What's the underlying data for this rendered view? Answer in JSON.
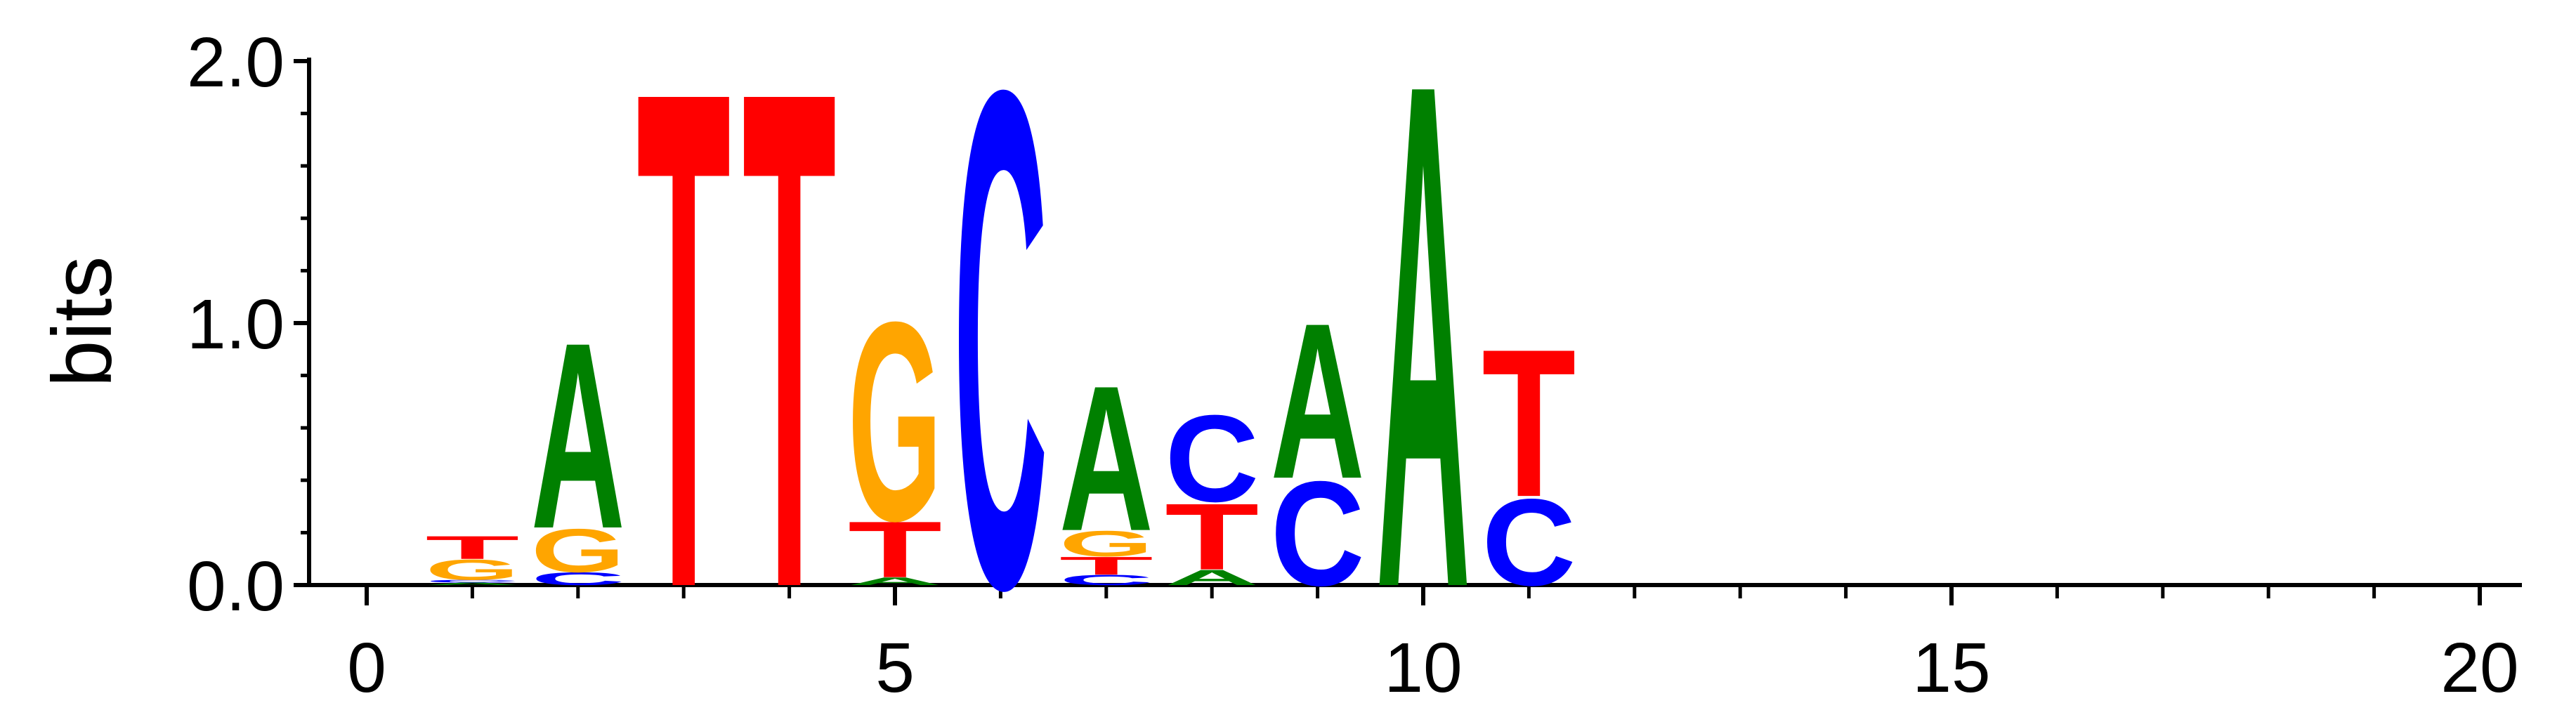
{
  "chart_data": {
    "type": "sequence-logo",
    "ylabel": "bits",
    "ylim": [
      0,
      2
    ],
    "xlim": [
      -0.5,
      20.5
    ],
    "yticks": [
      {
        "value": 0,
        "label": "0.0"
      },
      {
        "value": 1,
        "label": "1.0"
      },
      {
        "value": 2,
        "label": "2.0"
      }
    ],
    "xticks": [
      {
        "value": 0,
        "label": "0"
      },
      {
        "value": 5,
        "label": "5"
      },
      {
        "value": 10,
        "label": "10"
      },
      {
        "value": 15,
        "label": "15"
      },
      {
        "value": 20,
        "label": "20"
      }
    ],
    "colors": {
      "A": "#008000",
      "C": "#0000ff",
      "G": "#ffa500",
      "T": "#ff0000"
    },
    "positions": [
      {
        "x": 1,
        "letters": [
          {
            "base": "A",
            "height": 0.01
          },
          {
            "base": "C",
            "height": 0.01
          },
          {
            "base": "G",
            "height": 0.08
          },
          {
            "base": "T",
            "height": 0.09
          }
        ]
      },
      {
        "x": 2,
        "letters": [
          {
            "base": "C",
            "height": 0.05
          },
          {
            "base": "G",
            "height": 0.17
          },
          {
            "base": "A",
            "height": 0.73
          }
        ]
      },
      {
        "x": 3,
        "letters": [
          {
            "base": "T",
            "height": 1.95
          }
        ]
      },
      {
        "x": 4,
        "letters": [
          {
            "base": "T",
            "height": 1.95
          }
        ]
      },
      {
        "x": 5,
        "letters": [
          {
            "base": "A",
            "height": 0.03
          },
          {
            "base": "T",
            "height": 0.22
          },
          {
            "base": "G",
            "height": 0.78
          }
        ]
      },
      {
        "x": 6,
        "letters": [
          {
            "base": "C",
            "height": 1.95
          }
        ]
      },
      {
        "x": 7,
        "letters": [
          {
            "base": "C",
            "height": 0.04
          },
          {
            "base": "T",
            "height": 0.07
          },
          {
            "base": "G",
            "height": 0.1
          },
          {
            "base": "A",
            "height": 0.57
          }
        ]
      },
      {
        "x": 8,
        "letters": [
          {
            "base": "A",
            "height": 0.06
          },
          {
            "base": "T",
            "height": 0.26
          },
          {
            "base": "C",
            "height": 0.34
          }
        ]
      },
      {
        "x": 9,
        "letters": [
          {
            "base": "C",
            "height": 0.41
          },
          {
            "base": "A",
            "height": 0.61
          }
        ]
      },
      {
        "x": 10,
        "letters": [
          {
            "base": "A",
            "height": 1.98
          }
        ]
      },
      {
        "x": 11,
        "letters": [
          {
            "base": "C",
            "height": 0.34
          },
          {
            "base": "T",
            "height": 0.58
          }
        ]
      }
    ]
  }
}
